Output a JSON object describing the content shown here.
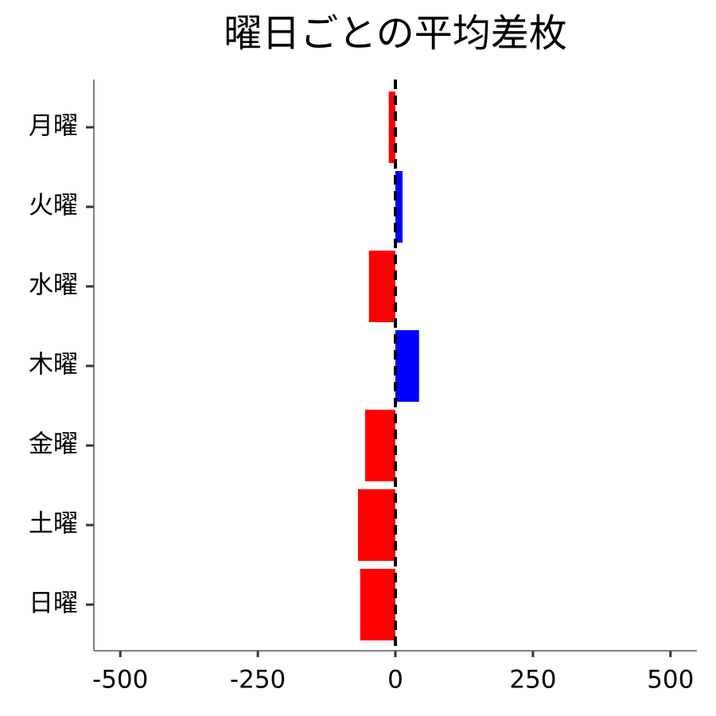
{
  "chart_data": {
    "type": "barh",
    "title": "曜日ごとの平均差枚",
    "categories": [
      "月曜",
      "火曜",
      "水曜",
      "木曜",
      "金曜",
      "土曜",
      "日曜"
    ],
    "values": [
      -12,
      13,
      -48,
      43,
      -55,
      -68,
      -64
    ],
    "colors": [
      "#ff0000",
      "#0000ff",
      "#ff0000",
      "#0000ff",
      "#ff0000",
      "#ff0000",
      "#ff0000"
    ],
    "xlim": [
      -548,
      548
    ],
    "xticks": [
      -500,
      -250,
      0,
      250,
      500
    ],
    "reference_line": 0
  }
}
